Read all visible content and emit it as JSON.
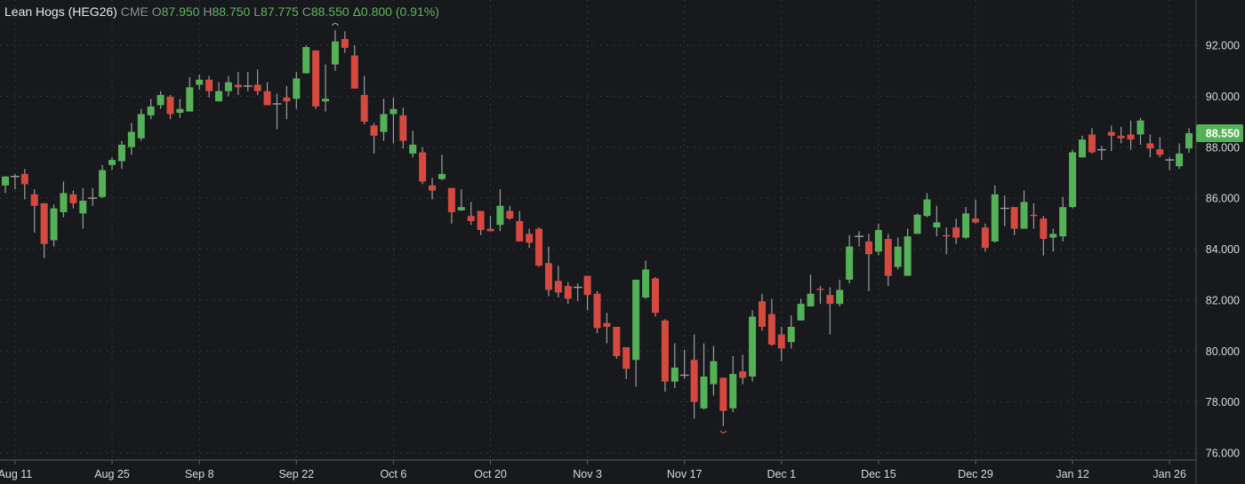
{
  "header": {
    "name": "Lean Hogs (HEG26)",
    "exchange": "CME",
    "open_label": "O",
    "open": "87.950",
    "high_label": "H",
    "high": "88.750",
    "low_label": "L",
    "low": "87.775",
    "close_label": "C",
    "close": "88.550",
    "change": "Δ0.800",
    "change_pct": "(0.91%)"
  },
  "last_price_tag": "88.550",
  "colors": {
    "up": "#55b157",
    "down": "#d5493f",
    "neutral": "#9a9da2",
    "background": "#17191c",
    "grid": "#3c3f44",
    "tag": "#55b157"
  },
  "chart_data": {
    "type": "candlestick",
    "title": "Lean Hogs (HEG26)",
    "ylim": [
      76,
      92
    ],
    "y_ticks": [
      "92.000",
      "90.000",
      "88.000",
      "86.000",
      "84.000",
      "82.000",
      "80.000",
      "78.000",
      "76.000"
    ],
    "y_tick_values": [
      92,
      90,
      88,
      86,
      84,
      82,
      80,
      78,
      76
    ],
    "x_ticks": [
      {
        "label": "Aug 11",
        "index": 1
      },
      {
        "label": "Aug 25",
        "index": 11
      },
      {
        "label": "Sep 8",
        "index": 20
      },
      {
        "label": "Sep 22",
        "index": 30
      },
      {
        "label": "Oct 6",
        "index": 40
      },
      {
        "label": "Oct 20",
        "index": 50
      },
      {
        "label": "Nov 3",
        "index": 60
      },
      {
        "label": "Nov 17",
        "index": 70
      },
      {
        "label": "Dec 1",
        "index": 80
      },
      {
        "label": "Dec 15",
        "index": 90
      },
      {
        "label": "Dec 29",
        "index": 100
      },
      {
        "label": "Jan 12",
        "index": 110
      },
      {
        "label": "Jan 26",
        "index": 120
      }
    ],
    "grid": true,
    "ohlc_fields": [
      "open",
      "high",
      "low",
      "close"
    ],
    "ohlc": [
      [
        86.5,
        86.87,
        86.2,
        86.85
      ],
      [
        86.85,
        86.95,
        86.35,
        86.85
      ],
      [
        86.95,
        87.15,
        85.95,
        86.55
      ],
      [
        86.15,
        86.35,
        84.65,
        85.7
      ],
      [
        85.8,
        85.8,
        83.65,
        84.2
      ],
      [
        84.35,
        85.75,
        84.1,
        85.6
      ],
      [
        85.45,
        86.65,
        85.25,
        86.2
      ],
      [
        86.15,
        86.3,
        85.6,
        85.8
      ],
      [
        85.4,
        86.4,
        84.8,
        85.9
      ],
      [
        86.0,
        86.4,
        85.7,
        86.0
      ],
      [
        86.05,
        87.3,
        86.0,
        87.1
      ],
      [
        87.3,
        87.6,
        87.1,
        87.5
      ],
      [
        87.45,
        88.25,
        87.15,
        88.1
      ],
      [
        88.0,
        88.95,
        87.7,
        88.6
      ],
      [
        88.35,
        89.5,
        88.25,
        89.3
      ],
      [
        89.25,
        89.9,
        89.1,
        89.6
      ],
      [
        89.65,
        90.2,
        89.5,
        90.05
      ],
      [
        89.98,
        90.05,
        89.1,
        89.3
      ],
      [
        89.35,
        89.9,
        89.15,
        89.5
      ],
      [
        89.4,
        90.75,
        89.4,
        90.35
      ],
      [
        90.45,
        90.85,
        90.25,
        90.65
      ],
      [
        90.65,
        90.8,
        89.95,
        90.2
      ],
      [
        89.8,
        90.55,
        89.8,
        90.2
      ],
      [
        90.2,
        90.8,
        90.0,
        90.55
      ],
      [
        90.45,
        90.95,
        90.05,
        90.35
      ],
      [
        90.4,
        90.95,
        90.2,
        90.4
      ],
      [
        90.45,
        91.05,
        90.05,
        90.2
      ],
      [
        90.2,
        90.55,
        89.65,
        89.65
      ],
      [
        89.7,
        90.1,
        88.7,
        89.7
      ],
      [
        89.95,
        90.4,
        89.1,
        89.8
      ],
      [
        89.9,
        90.95,
        89.5,
        90.7
      ],
      [
        90.9,
        92.0,
        90.9,
        91.93
      ],
      [
        91.8,
        91.8,
        89.5,
        89.6
      ],
      [
        89.8,
        91.25,
        89.4,
        89.9
      ],
      [
        91.25,
        92.6,
        91.0,
        92.15
      ],
      [
        92.25,
        92.55,
        91.7,
        91.9
      ],
      [
        91.6,
        92.0,
        90.3,
        90.3
      ],
      [
        90.05,
        90.8,
        88.9,
        89.0
      ],
      [
        88.85,
        88.95,
        87.75,
        88.45
      ],
      [
        88.6,
        89.9,
        88.25,
        89.3
      ],
      [
        89.3,
        89.95,
        88.15,
        89.5
      ],
      [
        89.25,
        89.55,
        87.95,
        88.25
      ],
      [
        87.75,
        88.65,
        87.6,
        88.1
      ],
      [
        87.8,
        88.0,
        86.55,
        86.65
      ],
      [
        86.5,
        86.8,
        85.95,
        86.3
      ],
      [
        86.75,
        87.7,
        86.7,
        86.95
      ],
      [
        86.4,
        86.4,
        85.0,
        85.45
      ],
      [
        85.52,
        86.35,
        85.5,
        85.65
      ],
      [
        85.3,
        85.85,
        84.95,
        85.1
      ],
      [
        85.5,
        85.5,
        84.55,
        84.75
      ],
      [
        84.8,
        85.3,
        84.7,
        84.7
      ],
      [
        84.95,
        86.35,
        84.7,
        85.7
      ],
      [
        85.5,
        85.7,
        85.15,
        85.2
      ],
      [
        85.1,
        85.5,
        84.3,
        84.3
      ],
      [
        84.6,
        84.8,
        84.05,
        84.25
      ],
      [
        84.8,
        84.85,
        83.3,
        83.35
      ],
      [
        83.45,
        84.1,
        82.15,
        82.4
      ],
      [
        82.75,
        83.35,
        82.1,
        82.3
      ],
      [
        82.55,
        82.7,
        81.85,
        82.05
      ],
      [
        82.5,
        82.65,
        81.95,
        82.5
      ],
      [
        82.95,
        82.95,
        81.6,
        82.2
      ],
      [
        82.25,
        82.35,
        80.7,
        80.9
      ],
      [
        81.1,
        81.5,
        80.3,
        80.95
      ],
      [
        80.95,
        80.95,
        79.7,
        79.8
      ],
      [
        80.15,
        80.15,
        78.9,
        79.3
      ],
      [
        79.65,
        82.8,
        78.6,
        82.8
      ],
      [
        82.1,
        83.55,
        82.05,
        83.2
      ],
      [
        82.85,
        82.9,
        81.35,
        81.5
      ],
      [
        81.2,
        81.25,
        78.4,
        78.8
      ],
      [
        78.8,
        80.3,
        78.55,
        79.35
      ],
      [
        79.05,
        80.05,
        78.9,
        79.05
      ],
      [
        79.65,
        80.65,
        77.35,
        78.0
      ],
      [
        77.75,
        80.3,
        77.7,
        79.0
      ],
      [
        78.7,
        80.2,
        78.25,
        79.6
      ],
      [
        78.95,
        78.95,
        77.05,
        77.65
      ],
      [
        77.75,
        79.8,
        77.6,
        79.1
      ],
      [
        79.2,
        79.85,
        78.7,
        78.95
      ],
      [
        79.0,
        81.6,
        78.8,
        81.35
      ],
      [
        81.95,
        82.25,
        80.8,
        80.95
      ],
      [
        81.45,
        82.05,
        80.2,
        80.25
      ],
      [
        80.65,
        80.95,
        79.6,
        80.1
      ],
      [
        80.35,
        81.4,
        80.1,
        80.95
      ],
      [
        81.2,
        82.05,
        81.2,
        81.85
      ],
      [
        81.75,
        83.0,
        81.75,
        82.25
      ],
      [
        82.45,
        82.55,
        81.85,
        82.4
      ],
      [
        82.2,
        82.5,
        80.65,
        81.85
      ],
      [
        81.85,
        82.8,
        81.75,
        82.4
      ],
      [
        82.8,
        84.55,
        82.65,
        84.1
      ],
      [
        84.5,
        84.7,
        84.1,
        84.5
      ],
      [
        84.3,
        84.6,
        82.35,
        83.8
      ],
      [
        83.9,
        85.0,
        83.75,
        84.75
      ],
      [
        84.4,
        84.6,
        82.55,
        82.95
      ],
      [
        83.3,
        84.45,
        83.2,
        84.1
      ],
      [
        82.95,
        84.8,
        82.95,
        84.5
      ],
      [
        84.6,
        85.4,
        84.6,
        85.35
      ],
      [
        85.3,
        86.2,
        85.25,
        85.95
      ],
      [
        84.85,
        85.7,
        84.5,
        85.05
      ],
      [
        84.55,
        84.85,
        83.8,
        84.5
      ],
      [
        84.85,
        85.2,
        84.2,
        84.45
      ],
      [
        84.45,
        85.65,
        84.4,
        85.4
      ],
      [
        85.2,
        85.95,
        85.0,
        85.05
      ],
      [
        84.85,
        85.0,
        83.9,
        84.05
      ],
      [
        84.3,
        86.5,
        84.25,
        86.15
      ],
      [
        85.6,
        86.1,
        84.9,
        85.6
      ],
      [
        85.65,
        85.65,
        84.55,
        84.8
      ],
      [
        84.8,
        86.3,
        84.8,
        85.85
      ],
      [
        85.35,
        85.8,
        84.8,
        85.3
      ],
      [
        85.2,
        85.3,
        83.75,
        84.4
      ],
      [
        84.45,
        84.8,
        83.9,
        84.6
      ],
      [
        84.5,
        86.05,
        84.3,
        85.65
      ],
      [
        85.65,
        87.9,
        85.6,
        87.8
      ],
      [
        87.6,
        88.45,
        87.6,
        88.3
      ],
      [
        88.5,
        88.75,
        87.75,
        87.8
      ],
      [
        87.9,
        88.05,
        87.5,
        87.9
      ],
      [
        88.6,
        88.85,
        87.85,
        88.45
      ],
      [
        88.45,
        88.8,
        88.15,
        88.35
      ],
      [
        88.5,
        89.05,
        87.9,
        88.3
      ],
      [
        88.5,
        89.15,
        88.1,
        89.05
      ],
      [
        88.15,
        88.5,
        87.6,
        87.95
      ],
      [
        87.92,
        88.4,
        87.6,
        87.7
      ],
      [
        87.5,
        87.6,
        87.1,
        87.5
      ],
      [
        87.25,
        88.15,
        87.15,
        87.75
      ],
      [
        87.95,
        88.75,
        87.775,
        88.55
      ]
    ],
    "high_marker_index": 34,
    "low_marker_index": 74,
    "last_price": 88.55
  }
}
